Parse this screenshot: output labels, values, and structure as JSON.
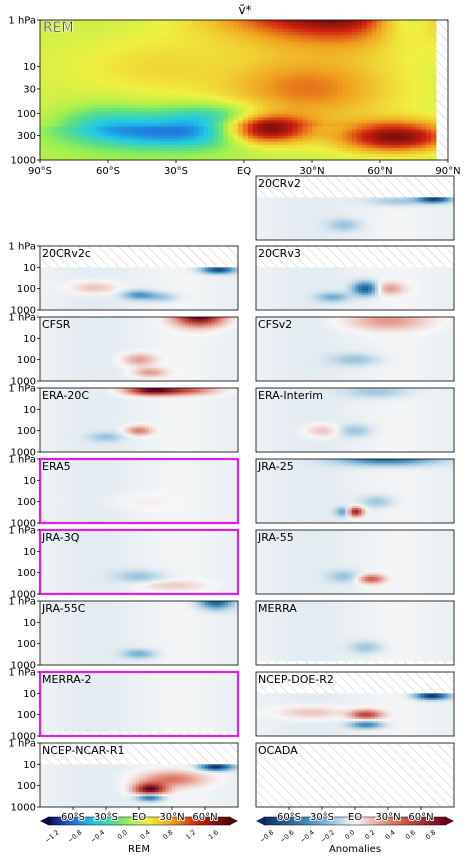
{
  "chart_data": {
    "type": "heatmap",
    "title": "v̄*",
    "main": {
      "label": "REM",
      "yticks": [
        "1 hPa",
        "10",
        "30",
        "100",
        "300",
        "1000"
      ],
      "xticks": [
        "90°S",
        "60°S",
        "30°S",
        "EQ",
        "30°N",
        "60°N",
        "90°N"
      ],
      "features": [
        {
          "lat": 48,
          "p": 0.4,
          "value": 1.8,
          "sx": 38,
          "sy": 0.55
        },
        {
          "lat": 75,
          "p": 0.4,
          "value": -1.4,
          "sx": 12,
          "sy": 0.5
        },
        {
          "lat": 12,
          "p": 220,
          "value": 1.8,
          "sx": 14,
          "sy": 0.22
        },
        {
          "lat": 72,
          "p": 320,
          "value": 1.4,
          "sx": 18,
          "sy": 0.22
        },
        {
          "lat": -25,
          "p": 280,
          "value": -0.9,
          "sx": 30,
          "sy": 0.22
        },
        {
          "lat": -10,
          "p": 120,
          "value": -0.7,
          "sx": 20,
          "sy": 0.2
        },
        {
          "lat": -60,
          "p": 150,
          "value": -0.5,
          "sx": 15,
          "sy": 0.25
        },
        {
          "lat": 30,
          "p": 30,
          "value": 0.6,
          "sx": 25,
          "sy": 0.45
        },
        {
          "lat": -40,
          "p": 10,
          "value": 0.3,
          "sx": 25,
          "sy": 0.5
        }
      ]
    },
    "panels": [
      {
        "label": "20CRv2",
        "yticks": [],
        "top_missing_hpa": 10,
        "features": [
          {
            "lat": 72,
            "p": 12,
            "value": -0.8,
            "sx": 10,
            "sy": 0.12
          },
          {
            "lat": 40,
            "p": 15,
            "value": -0.2,
            "sx": 20,
            "sy": 0.15
          },
          {
            "lat": -10,
            "p": 200,
            "value": -0.2,
            "sx": 10,
            "sy": 0.2
          }
        ]
      },
      {
        "label": "20CRv2c",
        "yticks": [
          "1 hPa",
          "10",
          "100",
          "1000"
        ],
        "top_missing_hpa": 10,
        "features": [
          {
            "lat": 72,
            "p": 13,
            "value": -0.8,
            "sx": 10,
            "sy": 0.12
          },
          {
            "lat": 0,
            "p": 200,
            "value": -0.4,
            "sx": 10,
            "sy": 0.15
          },
          {
            "lat": -40,
            "p": 90,
            "value": 0.2,
            "sx": 15,
            "sy": 0.2
          },
          {
            "lat": 20,
            "p": 250,
            "value": -0.2,
            "sx": 10,
            "sy": 0.15
          }
        ]
      },
      {
        "label": "20CRv3",
        "yticks": [],
        "top_missing_hpa": 10,
        "features": [
          {
            "lat": 10,
            "p": 100,
            "value": -0.7,
            "sx": 8,
            "sy": 0.22
          },
          {
            "lat": 30,
            "p": 100,
            "value": 0.3,
            "sx": 10,
            "sy": 0.2
          },
          {
            "lat": -20,
            "p": 250,
            "value": -0.3,
            "sx": 10,
            "sy": 0.15
          }
        ]
      },
      {
        "label": "CFSR",
        "yticks": [
          "1 hPa",
          "10",
          "100",
          "1000"
        ],
        "top_missing_hpa": 0,
        "features": [
          {
            "lat": 55,
            "p": 1,
            "value": 0.9,
            "sx": 15,
            "sy": 0.3
          },
          {
            "lat": 0,
            "p": 100,
            "value": 0.3,
            "sx": 10,
            "sy": 0.2
          },
          {
            "lat": 10,
            "p": 400,
            "value": 0.3,
            "sx": 10,
            "sy": 0.15
          }
        ]
      },
      {
        "label": "CFSv2",
        "yticks": [],
        "top_missing_hpa": 0,
        "features": [
          {
            "lat": 30,
            "p": 1.5,
            "value": 0.3,
            "sx": 25,
            "sy": 0.3
          },
          {
            "lat": 0,
            "p": 100,
            "value": -0.2,
            "sx": 15,
            "sy": 0.2
          }
        ]
      },
      {
        "label": "ERA-20C",
        "yticks": [
          "1 hPa",
          "10",
          "100",
          "1000"
        ],
        "top_missing_hpa": 0,
        "features": [
          {
            "lat": 10,
            "p": 1.3,
            "value": 0.8,
            "sx": 15,
            "sy": 0.15
          },
          {
            "lat": 40,
            "p": 1.3,
            "value": 0.5,
            "sx": 20,
            "sy": 0.15
          },
          {
            "lat": 0,
            "p": 100,
            "value": 0.4,
            "sx": 8,
            "sy": 0.15
          },
          {
            "lat": -30,
            "p": 200,
            "value": -0.2,
            "sx": 10,
            "sy": 0.15
          }
        ]
      },
      {
        "label": "ERA-Interim",
        "yticks": [],
        "top_missing_hpa": 0,
        "features": [
          {
            "lat": 20,
            "p": 1.5,
            "value": -0.2,
            "sx": 20,
            "sy": 0.2
          },
          {
            "lat": -30,
            "p": 100,
            "value": 0.2,
            "sx": 10,
            "sy": 0.2
          },
          {
            "lat": 0,
            "p": 100,
            "value": -0.2,
            "sx": 10,
            "sy": 0.2
          }
        ]
      },
      {
        "label": "ERA5",
        "yticks": [
          "1 hPa",
          "10",
          "100",
          "1000"
        ],
        "top_missing_hpa": 0,
        "highlight": true,
        "features": [
          {
            "lat": 0,
            "p": 100,
            "value": 0.05,
            "sx": 20,
            "sy": 0.3
          }
        ]
      },
      {
        "label": "JRA-25",
        "yticks": [],
        "top_missing_hpa": 0,
        "features": [
          {
            "lat": 30,
            "p": 1,
            "value": -0.6,
            "sx": 30,
            "sy": 0.2
          },
          {
            "lat": 0,
            "p": 300,
            "value": 0.8,
            "sx": 5,
            "sy": 0.15
          },
          {
            "lat": -10,
            "p": 300,
            "value": -0.4,
            "sx": 5,
            "sy": 0.15
          },
          {
            "lat": 20,
            "p": 100,
            "value": -0.2,
            "sx": 10,
            "sy": 0.2
          }
        ]
      },
      {
        "label": "JRA-3Q",
        "yticks": [
          "1 hPa",
          "10",
          "100",
          "1000"
        ],
        "top_missing_hpa": 0,
        "highlight": true,
        "features": [
          {
            "lat": 0,
            "p": 150,
            "value": -0.2,
            "sx": 15,
            "sy": 0.2
          },
          {
            "lat": 30,
            "p": 400,
            "value": 0.15,
            "sx": 20,
            "sy": 0.15
          }
        ]
      },
      {
        "label": "JRA-55",
        "yticks": [],
        "top_missing_hpa": 0,
        "features": [
          {
            "lat": 15,
            "p": 200,
            "value": 0.5,
            "sx": 8,
            "sy": 0.15
          },
          {
            "lat": -10,
            "p": 150,
            "value": -0.2,
            "sx": 10,
            "sy": 0.2
          }
        ]
      },
      {
        "label": "JRA-55C",
        "yticks": [
          "1 hPa",
          "10",
          "100",
          "1000"
        ],
        "top_missing_hpa": 0,
        "features": [
          {
            "lat": 70,
            "p": 1,
            "value": -0.7,
            "sx": 10,
            "sy": 0.25
          },
          {
            "lat": 0,
            "p": 300,
            "value": -0.3,
            "sx": 10,
            "sy": 0.15
          }
        ]
      },
      {
        "label": "MERRA",
        "yticks": [],
        "top_missing_hpa": 0,
        "bottom_missing_hpa": 600,
        "features": [
          {
            "lat": 10,
            "p": 150,
            "value": -0.2,
            "sx": 10,
            "sy": 0.2
          }
        ]
      },
      {
        "label": "MERRA-2",
        "yticks": [
          "1 hPa",
          "10",
          "100",
          "1000"
        ],
        "top_missing_hpa": 0,
        "bottom_missing_hpa": 600,
        "highlight": true,
        "features": []
      },
      {
        "label": "NCEP-DOE-R2",
        "yticks": [],
        "top_missing_hpa": 10,
        "features": [
          {
            "lat": 70,
            "p": 13,
            "value": -0.9,
            "sx": 10,
            "sy": 0.12
          },
          {
            "lat": 10,
            "p": 100,
            "value": 0.6,
            "sx": 10,
            "sy": 0.15
          },
          {
            "lat": 10,
            "p": 300,
            "value": -0.5,
            "sx": 10,
            "sy": 0.12
          },
          {
            "lat": -40,
            "p": 80,
            "value": 0.2,
            "sx": 20,
            "sy": 0.2
          }
        ]
      },
      {
        "label": "NCEP-NCAR-R1",
        "yticks": [
          "1 hPa",
          "10",
          "100",
          "1000"
        ],
        "top_missing_hpa": 10,
        "features": [
          {
            "lat": 70,
            "p": 13,
            "value": -0.9,
            "sx": 10,
            "sy": 0.12
          },
          {
            "lat": 10,
            "p": 150,
            "value": 0.9,
            "sx": 10,
            "sy": 0.2
          },
          {
            "lat": 10,
            "p": 350,
            "value": -0.7,
            "sx": 8,
            "sy": 0.12
          },
          {
            "lat": 30,
            "p": 50,
            "value": 0.4,
            "sx": 20,
            "sy": 0.25
          }
        ]
      },
      {
        "label": "OCADA",
        "yticks": [],
        "top_missing_hpa": 1000,
        "features": []
      }
    ],
    "colorbars": [
      {
        "label": "REM",
        "ticks": [
          "−1.2",
          "−0.8",
          "−0.4",
          "0.0",
          "0.4",
          "0.8",
          "1.2",
          "1.6"
        ],
        "min": -1.4,
        "max": 1.8
      },
      {
        "label": "Anomalies",
        "ticks": [
          "−0.8",
          "−0.6",
          "−0.4",
          "−0.2",
          "0.0",
          "0.2",
          "0.4",
          "0.6",
          "0.8"
        ],
        "min": -0.9,
        "max": 0.9
      }
    ],
    "panel_xticks": [
      "60°S",
      "30°S",
      "EO",
      "30°N",
      "60°N"
    ],
    "highlight_color": "#e020e0"
  }
}
